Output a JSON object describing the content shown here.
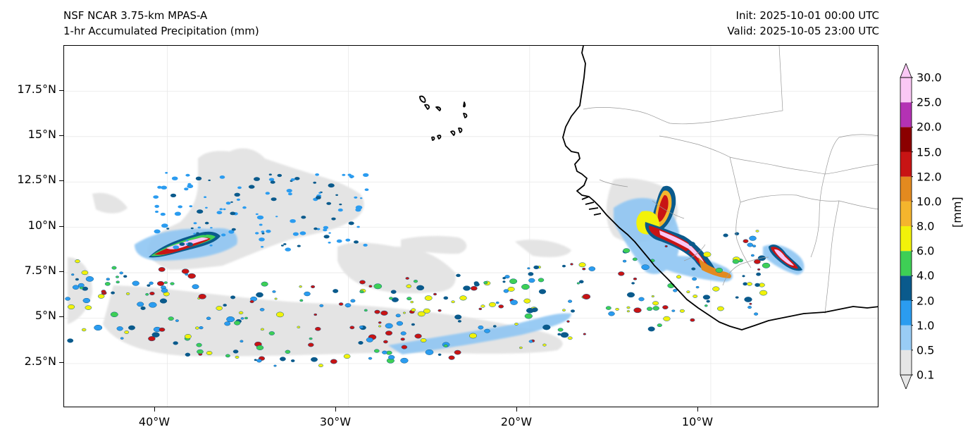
{
  "title": {
    "model": "NSF NCAR 3.75-km MPAS-A",
    "field": "1-hr Accumulated Precipitation (mm)",
    "init": "Init: 2025-10-01 00:00 UTC",
    "valid": "Valid: 2025-10-05 23:00 UTC"
  },
  "axes": {
    "lat_labels": [
      "17.5°N",
      "15°N",
      "12.5°N",
      "10°N",
      "7.5°N",
      "5°N",
      "2.5°N"
    ],
    "lon_labels": [
      "40°W",
      "30°W",
      "20°W",
      "10°W"
    ],
    "lat_values": [
      17.5,
      15,
      12.5,
      10,
      7.5,
      5,
      2.5
    ],
    "lon_values": [
      -40,
      -30,
      -20,
      -10
    ],
    "extent": {
      "lon_min": -45.7,
      "lon_max": -0.7,
      "lat_min": 0.05,
      "lat_max": 20.0
    }
  },
  "colorbar": {
    "unit": "[mm]",
    "levels": [
      "0.1",
      "0.5",
      "1.0",
      "2.0",
      "4.0",
      "6.0",
      "8.0",
      "10.0",
      "12.0",
      "15.0",
      "20.0",
      "25.0",
      "30.0"
    ],
    "colors": [
      "#e6e6e6",
      "#99ccf5",
      "#2b9cf0",
      "#0a5a8c",
      "#3ecf55",
      "#f2f20a",
      "#f5b52d",
      "#e38a1f",
      "#c81414",
      "#8b0000",
      "#b432b4",
      "#fac8f5"
    ],
    "extend": "both"
  }
}
